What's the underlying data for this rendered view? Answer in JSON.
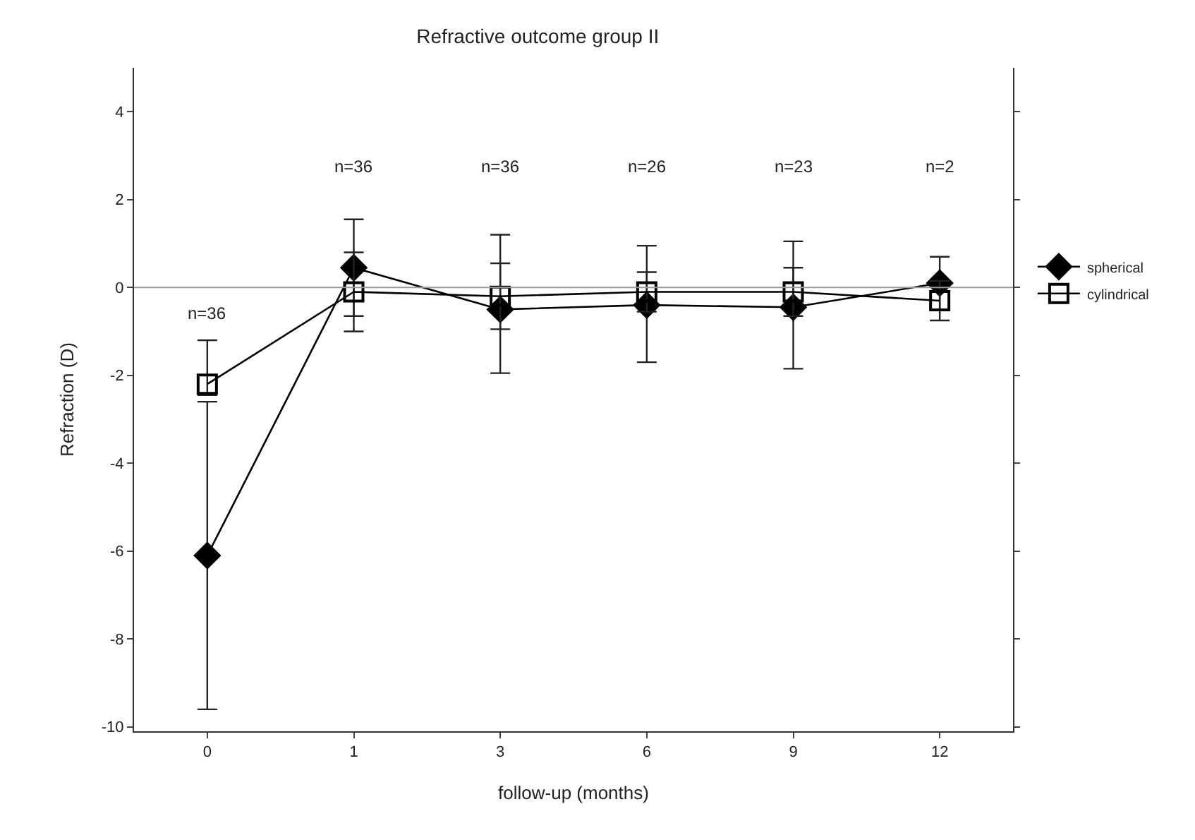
{
  "chart_data": {
    "type": "line",
    "title": "Refractive outcome group II",
    "xlabel": "follow-up (months)",
    "ylabel": "Refraction (D)",
    "categories": [
      "0",
      "1",
      "3",
      "6",
      "9",
      "12"
    ],
    "series": [
      {
        "name": "spherical",
        "color": "#000000",
        "marker": "diamond",
        "values": [
          -6.1,
          0.45,
          -0.5,
          -0.4,
          -0.45,
          0.1
        ],
        "errors": [
          3.5,
          1.1,
          [
            -1.95,
            1.2
          ],
          [
            -1.7,
            0.95
          ],
          [
            -1.85,
            1.05
          ],
          0.6
        ]
      },
      {
        "name": "cylindrical",
        "color": "#000000",
        "marker": "square",
        "values": [
          -2.2,
          -0.1,
          -0.2,
          -0.1,
          -0.1,
          -0.3
        ],
        "errors": [
          [
            -2.45,
            -1.2
          ],
          0.9,
          0.75,
          0.45,
          0.55,
          0.45
        ]
      }
    ],
    "ylim": [
      -10.1,
      5
    ],
    "yticks": [
      -10,
      -8,
      -6,
      -4,
      -2,
      0,
      2,
      4
    ],
    "ref_lines": [
      {
        "axis": "y",
        "value": 0,
        "color": "#999999"
      }
    ],
    "annotations": [
      "n=36",
      "n=36",
      "n=36",
      "n=26",
      "n=23",
      "n=2"
    ],
    "grid": false,
    "legend": "right",
    "line_style": "solid"
  }
}
